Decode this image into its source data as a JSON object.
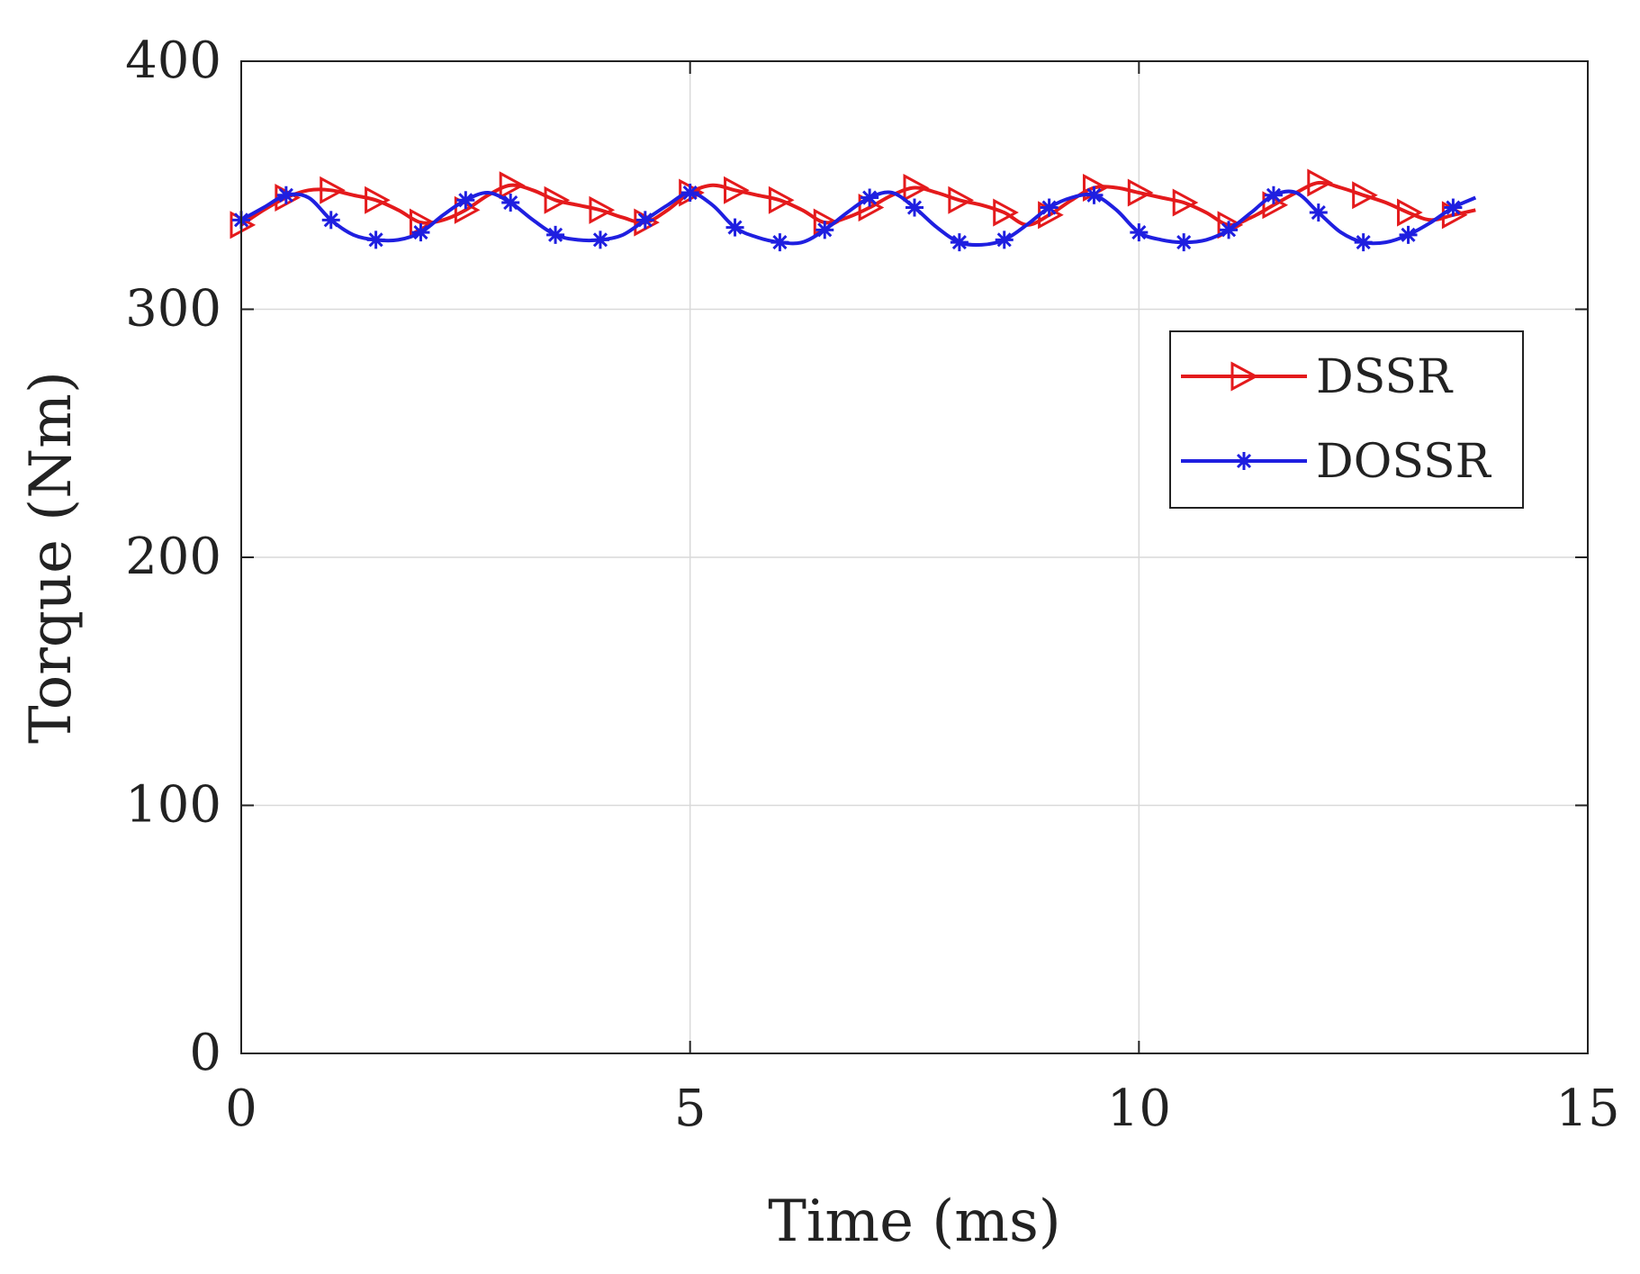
{
  "chart_data": {
    "type": "line",
    "title": "",
    "xlabel": "Time (ms)",
    "ylabel": "Torque (Nm)",
    "xlim": [
      0,
      15
    ],
    "ylim": [
      0,
      400
    ],
    "xticks": [
      0,
      5,
      10,
      15
    ],
    "yticks": [
      0,
      100,
      200,
      300,
      400
    ],
    "grid": true,
    "legend_position": "upper-right",
    "series": [
      {
        "name": "DSSR",
        "color": "#e41a1c",
        "marker": "triangle-right",
        "x": [
          0,
          0.25,
          0.5,
          0.75,
          1.0,
          1.25,
          1.5,
          1.75,
          2.0,
          2.25,
          2.5,
          2.75,
          3.0,
          3.25,
          3.5,
          3.75,
          4.0,
          4.25,
          4.5,
          4.75,
          5.0,
          5.25,
          5.5,
          5.75,
          6.0,
          6.25,
          6.5,
          6.75,
          7.0,
          7.25,
          7.5,
          7.75,
          8.0,
          8.25,
          8.5,
          8.75,
          9.0,
          9.25,
          9.5,
          9.75,
          10.0,
          10.25,
          10.5,
          10.75,
          11.0,
          11.25,
          11.5,
          11.75,
          12.0,
          12.25,
          12.5,
          12.75,
          13.0,
          13.25,
          13.5,
          13.75
        ],
        "y": [
          334,
          340,
          345,
          348,
          348,
          346,
          344,
          340,
          335,
          336,
          340,
          346,
          350,
          348,
          344,
          342,
          340,
          337,
          335,
          340,
          347,
          350,
          348,
          346,
          344,
          340,
          335,
          337,
          341,
          346,
          349,
          347,
          344,
          342,
          339,
          334,
          338,
          344,
          349,
          349,
          347,
          345,
          343,
          339,
          334,
          337,
          342,
          347,
          351,
          349,
          346,
          343,
          339,
          336,
          338,
          340
        ],
        "marker_x": [
          0,
          0.5,
          1.0,
          1.5,
          2.0,
          2.5,
          3.0,
          3.5,
          4.0,
          4.5,
          5.0,
          5.5,
          6.0,
          6.5,
          7.0,
          7.5,
          8.0,
          8.5,
          9.0,
          9.5,
          10.0,
          10.5,
          11.0,
          11.5,
          12.0,
          12.5,
          13.0,
          13.5
        ]
      },
      {
        "name": "DOSSR",
        "color": "#1f1fe0",
        "marker": "asterisk",
        "x": [
          0,
          0.25,
          0.5,
          0.75,
          1.0,
          1.25,
          1.5,
          1.75,
          2.0,
          2.25,
          2.5,
          2.75,
          3.0,
          3.25,
          3.5,
          3.75,
          4.0,
          4.25,
          4.5,
          4.75,
          5.0,
          5.25,
          5.5,
          5.75,
          6.0,
          6.25,
          6.5,
          6.75,
          7.0,
          7.25,
          7.5,
          7.75,
          8.0,
          8.25,
          8.5,
          8.75,
          9.0,
          9.25,
          9.5,
          9.75,
          10.0,
          10.25,
          10.5,
          10.75,
          11.0,
          11.25,
          11.5,
          11.75,
          12.0,
          12.25,
          12.5,
          12.75,
          13.0,
          13.25,
          13.5,
          13.75
        ],
        "y": [
          336,
          341,
          346,
          345,
          336,
          330,
          328,
          328,
          331,
          338,
          344,
          347,
          343,
          336,
          330,
          328,
          328,
          330,
          336,
          342,
          347,
          342,
          333,
          329,
          327,
          327,
          332,
          339,
          345,
          347,
          341,
          333,
          327,
          326,
          328,
          334,
          341,
          345,
          346,
          340,
          331,
          328,
          327,
          328,
          332,
          339,
          346,
          347,
          339,
          331,
          327,
          327,
          330,
          335,
          341,
          345
        ],
        "marker_x": [
          0,
          0.5,
          1.0,
          1.5,
          2.0,
          2.5,
          3.0,
          3.5,
          4.0,
          4.5,
          5.0,
          5.5,
          6.0,
          6.5,
          7.0,
          7.5,
          8.0,
          8.5,
          9.0,
          9.5,
          10.0,
          10.5,
          11.0,
          11.5,
          12.0,
          12.5,
          13.0,
          13.5
        ]
      }
    ]
  }
}
